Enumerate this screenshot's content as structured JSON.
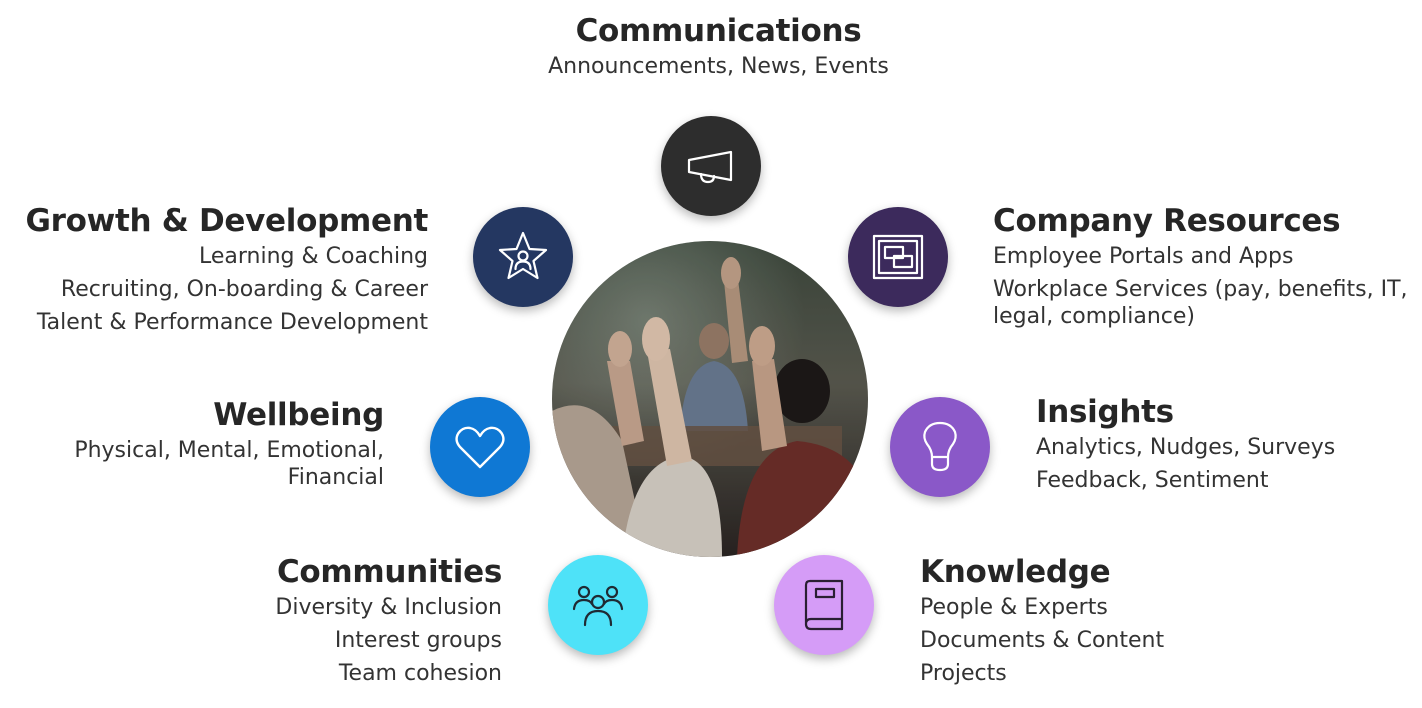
{
  "colors": {
    "communications": "#2d2d2d",
    "growth": "#243761",
    "company_resources": "#3c2a5c",
    "wellbeing": "#0f78d4",
    "insights": "#8a58c8",
    "communities": "#4ee2f8",
    "knowledge": "#d59cf7"
  },
  "icons": {
    "communications": "megaphone-icon",
    "growth": "star-person-icon",
    "company_resources": "portal-app-icon",
    "wellbeing": "heart-icon",
    "insights": "lightbulb-icon",
    "communities": "people-group-icon",
    "knowledge": "book-icon"
  },
  "communications": {
    "title": "Communications",
    "lines": [
      "Announcements, News, Events"
    ]
  },
  "growth": {
    "title": "Growth & Development",
    "lines": [
      "Learning & Coaching",
      "Recruiting, On-boarding & Career",
      "Talent & Performance Development"
    ]
  },
  "company_resources": {
    "title": "Company Resources",
    "lines": [
      "Employee Portals and Apps",
      "Workplace Services (pay, benefits, IT,",
      "legal, compliance)"
    ]
  },
  "wellbeing": {
    "title": "Wellbeing",
    "lines": [
      "Physical, Mental, Emotional,",
      "Financial"
    ]
  },
  "insights": {
    "title": "Insights",
    "lines": [
      "Analytics, Nudges, Surveys",
      "Feedback, Sentiment"
    ]
  },
  "communities": {
    "title": "Communities",
    "lines": [
      "Diversity & Inclusion",
      "Interest groups",
      "Team cohesion"
    ]
  },
  "knowledge": {
    "title": "Knowledge",
    "lines": [
      "People & Experts",
      "Documents & Content",
      "Projects"
    ]
  }
}
